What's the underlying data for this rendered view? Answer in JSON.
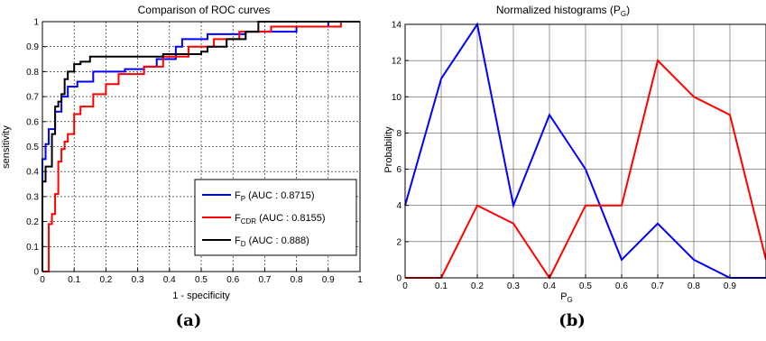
{
  "chart_data": [
    {
      "type": "line",
      "panel_label": "(a)",
      "title": "Comparison of ROC curves",
      "xlabel": "1 - specificity",
      "ylabel": "sensitivity",
      "xlim": [
        0,
        1
      ],
      "ylim": [
        0,
        1
      ],
      "xticks": [
        "0",
        "0.1",
        "0.2",
        "0.3",
        "0.4",
        "0.5",
        "0.6",
        "0.7",
        "0.8",
        "0.9",
        "1"
      ],
      "yticks": [
        "0",
        "0.1",
        "0.2",
        "0.3",
        "0.4",
        "0.5",
        "0.6",
        "0.7",
        "0.8",
        "0.9",
        "1"
      ],
      "grid": "dashed",
      "legend_position": "bottom-right",
      "series": [
        {
          "name": "F",
          "sub": "P",
          "auc_text": " (AUC : 0.8715)",
          "color": "#0000ff",
          "x": [
            0,
            0,
            0.01,
            0.01,
            0.02,
            0.02,
            0.04,
            0.04,
            0.06,
            0.06,
            0.08,
            0.08,
            0.11,
            0.11,
            0.16,
            0.16,
            0.21,
            0.21,
            0.26,
            0.26,
            0.32,
            0.32,
            0.36,
            0.36,
            0.42,
            0.42,
            0.44,
            0.44,
            0.52,
            0.52,
            0.64,
            0.64,
            0.76,
            0.76,
            0.8,
            0.8,
            0.9,
            0.9,
            1
          ],
          "y": [
            0,
            0.45,
            0.45,
            0.51,
            0.51,
            0.57,
            0.57,
            0.64,
            0.64,
            0.7,
            0.7,
            0.74,
            0.74,
            0.76,
            0.76,
            0.8,
            0.8,
            0.8,
            0.8,
            0.81,
            0.81,
            0.82,
            0.82,
            0.85,
            0.85,
            0.9,
            0.9,
            0.93,
            0.93,
            0.95,
            0.95,
            0.96,
            0.96,
            0.96,
            0.96,
            0.98,
            0.98,
            1,
            1
          ]
        },
        {
          "name": "F",
          "sub": "CDR",
          "auc_text": " (AUC : 0.8155)",
          "color": "#ff0000",
          "x": [
            0,
            0.02,
            0.02,
            0.03,
            0.03,
            0.04,
            0.04,
            0.05,
            0.05,
            0.06,
            0.06,
            0.07,
            0.07,
            0.08,
            0.08,
            0.1,
            0.1,
            0.12,
            0.12,
            0.16,
            0.16,
            0.2,
            0.2,
            0.24,
            0.24,
            0.32,
            0.32,
            0.38,
            0.38,
            0.46,
            0.46,
            0.54,
            0.54,
            0.62,
            0.62,
            0.72,
            0.72,
            0.94,
            0.94,
            1
          ],
          "y": [
            0,
            0,
            0.19,
            0.19,
            0.23,
            0.23,
            0.31,
            0.31,
            0.44,
            0.44,
            0.49,
            0.49,
            0.52,
            0.52,
            0.55,
            0.55,
            0.63,
            0.63,
            0.66,
            0.66,
            0.71,
            0.71,
            0.75,
            0.75,
            0.79,
            0.79,
            0.82,
            0.82,
            0.86,
            0.86,
            0.9,
            0.9,
            0.93,
            0.93,
            0.96,
            0.96,
            0.98,
            0.98,
            1,
            1
          ]
        },
        {
          "name": "F",
          "sub": "D",
          "auc_text": " (AUC : 0.888)",
          "color": "#000000",
          "x": [
            0,
            0,
            0.01,
            0.01,
            0.03,
            0.03,
            0.04,
            0.04,
            0.05,
            0.05,
            0.06,
            0.06,
            0.07,
            0.07,
            0.08,
            0.08,
            0.1,
            0.1,
            0.12,
            0.12,
            0.15,
            0.15,
            0.38,
            0.38,
            0.5,
            0.5,
            0.52,
            0.52,
            0.58,
            0.58,
            0.64,
            0.64,
            0.68,
            0.68,
            1
          ],
          "y": [
            0,
            0.36,
            0.36,
            0.42,
            0.42,
            0.55,
            0.55,
            0.66,
            0.66,
            0.68,
            0.68,
            0.71,
            0.71,
            0.77,
            0.77,
            0.8,
            0.8,
            0.83,
            0.83,
            0.84,
            0.84,
            0.86,
            0.86,
            0.87,
            0.87,
            0.88,
            0.88,
            0.9,
            0.9,
            0.93,
            0.93,
            0.96,
            0.96,
            1,
            1
          ]
        }
      ]
    },
    {
      "type": "line",
      "panel_label": "(b)",
      "title": "Normalized histograms (P",
      "title_sub": "G",
      "title_end": ")",
      "xlabel": "P",
      "xlabel_sub": "G",
      "ylabel": "Probability",
      "xlim": [
        0,
        1
      ],
      "ylim": [
        0,
        14
      ],
      "xticks": [
        "0",
        "0.1",
        "0.2",
        "0.3",
        "0.4",
        "0.5",
        "0.6",
        "0.7",
        "0.8",
        "0.9"
      ],
      "yticks": [
        "0",
        "2",
        "4",
        "6",
        "8",
        "10",
        "12",
        "14"
      ],
      "grid": "solid",
      "series": [
        {
          "color": "#0000ff",
          "x": [
            0,
            0.1,
            0.2,
            0.3,
            0.4,
            0.5,
            0.6,
            0.7,
            0.8,
            0.9,
            1.0
          ],
          "y": [
            4,
            11,
            14,
            4,
            9,
            6,
            1,
            3,
            1,
            0,
            0
          ]
        },
        {
          "color": "#ff0000",
          "x": [
            0,
            0.1,
            0.2,
            0.3,
            0.4,
            0.5,
            0.6,
            0.7,
            0.8,
            0.9,
            1.0
          ],
          "y": [
            0,
            0,
            4,
            3,
            0,
            4,
            4,
            12,
            10,
            9,
            1
          ]
        }
      ]
    }
  ]
}
